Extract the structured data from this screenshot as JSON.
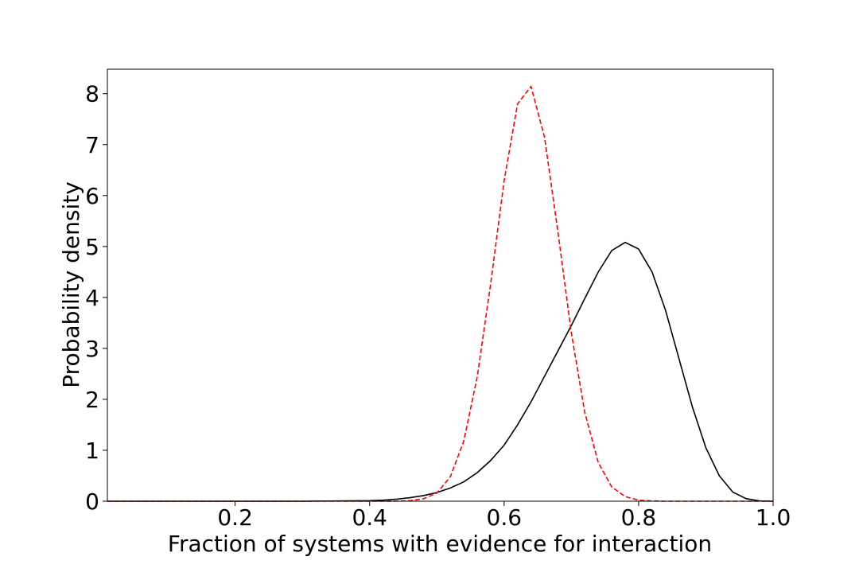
{
  "chart_data": {
    "type": "line",
    "x_label": "Fraction of systems with evidence for interaction",
    "y_label": "Probability density",
    "x": [
      0.01,
      0.1,
      0.2,
      0.3,
      0.4,
      0.42,
      0.44,
      0.46,
      0.48,
      0.5,
      0.52,
      0.54,
      0.56,
      0.58,
      0.6,
      0.62,
      0.64,
      0.66,
      0.68,
      0.7,
      0.72,
      0.74,
      0.76,
      0.78,
      0.8,
      0.82,
      0.84,
      0.86,
      0.88,
      0.9,
      0.92,
      0.94,
      0.96,
      0.98,
      1.0
    ],
    "series": [
      {
        "color": "#000000",
        "linestyle": "solid",
        "values": [
          0,
          0,
          0,
          0,
          0.01,
          0.02,
          0.04,
          0.07,
          0.11,
          0.17,
          0.26,
          0.38,
          0.56,
          0.8,
          1.1,
          1.5,
          1.95,
          2.45,
          2.95,
          3.45,
          3.98,
          4.5,
          4.92,
          5.08,
          4.95,
          4.5,
          3.75,
          2.8,
          1.85,
          1.05,
          0.5,
          0.18,
          0.05,
          0.005,
          0
        ]
      },
      {
        "color": "#ff0000",
        "linestyle": "dashed",
        "values": [
          0,
          0,
          0,
          0,
          0,
          0,
          0.002,
          0.011,
          0.047,
          0.16,
          0.48,
          1.18,
          2.44,
          4.27,
          6.29,
          7.8,
          8.14,
          7.15,
          5.29,
          3.3,
          1.74,
          0.76,
          0.28,
          0.09,
          0.02,
          0.005,
          0,
          0,
          0,
          0,
          0,
          0,
          0,
          0,
          0
        ]
      }
    ],
    "xlim": [
      0.01,
      1.0
    ],
    "xticks": [
      0.2,
      0.4,
      0.6,
      0.8,
      {
        "value": 1.0,
        "label": "1.0"
      }
    ],
    "ylim": [
      0,
      8.48
    ],
    "yticks": [
      0,
      1,
      2,
      3,
      4,
      5,
      6,
      7,
      8
    ],
    "grid": false
  }
}
